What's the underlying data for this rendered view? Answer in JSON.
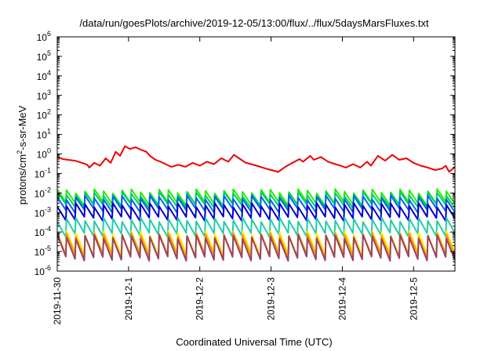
{
  "chart_data": {
    "type": "line",
    "title": "/data/run/goesPlots/archive/2019-12-05/13:00/flux/../flux/5daysMarsFluxes.txt",
    "xlabel": "Coordinated Universal Time (UTC)",
    "ylabel_base": "protons/cm",
    "ylabel_sup": "2",
    "ylabel_rest": "-s-sr-MeV",
    "y_scale": "log",
    "ylim": [
      1e-06,
      1000000.0
    ],
    "xlim": [
      0,
      5.58
    ],
    "grid": false,
    "legend": "none",
    "y_ticks": [
      {
        "base": "10",
        "exp": "-6"
      },
      {
        "base": "10",
        "exp": "-5"
      },
      {
        "base": "10",
        "exp": "-4"
      },
      {
        "base": "10",
        "exp": "-3"
      },
      {
        "base": "10",
        "exp": "-2"
      },
      {
        "base": "10",
        "exp": "-1"
      },
      {
        "base": "10",
        "exp": "0"
      },
      {
        "base": "10",
        "exp": "1"
      },
      {
        "base": "10",
        "exp": "2"
      },
      {
        "base": "10",
        "exp": "3"
      },
      {
        "base": "10",
        "exp": "4"
      },
      {
        "base": "10",
        "exp": "5"
      },
      {
        "base": "10",
        "exp": "6"
      }
    ],
    "x_ticks": [
      "2019-11-30",
      "2019-12-1",
      "2019-12-2",
      "2019-12-3",
      "2019-12-4",
      "2019-12-5"
    ],
    "series": [
      {
        "color": "#ee0000",
        "x": [
          0,
          0.08,
          0.15,
          0.25,
          0.35,
          0.42,
          0.45,
          0.52,
          0.6,
          0.68,
          0.75,
          0.82,
          0.88,
          0.95,
          1.02,
          1.1,
          1.18,
          1.25,
          1.3,
          1.38,
          1.45,
          1.52,
          1.6,
          1.7,
          1.8,
          1.9,
          2.0,
          2.1,
          2.2,
          2.3,
          2.4,
          2.48,
          2.55,
          2.6,
          2.65,
          2.72,
          2.8,
          2.88,
          3.0,
          3.1,
          3.2,
          3.3,
          3.4,
          3.45,
          3.55,
          3.6,
          3.7,
          3.8,
          3.9,
          3.98,
          4.05,
          4.15,
          4.25,
          4.35,
          4.4,
          4.5,
          4.6,
          4.7,
          4.8,
          4.9,
          5.0,
          5.1,
          5.2,
          5.3,
          5.4,
          5.45,
          5.5,
          5.58
        ],
        "y": [
          0.7,
          0.55,
          0.5,
          0.45,
          0.35,
          0.28,
          0.2,
          0.35,
          0.25,
          0.6,
          0.35,
          1.3,
          0.8,
          2.5,
          1.8,
          2.2,
          1.6,
          1.3,
          0.8,
          0.5,
          0.4,
          0.3,
          0.22,
          0.28,
          0.22,
          0.35,
          0.25,
          0.4,
          0.3,
          0.6,
          0.4,
          0.9,
          0.6,
          0.45,
          0.35,
          0.3,
          0.25,
          0.2,
          0.15,
          0.12,
          0.22,
          0.35,
          0.55,
          0.4,
          0.8,
          0.5,
          0.7,
          0.4,
          0.3,
          0.25,
          0.2,
          0.3,
          0.2,
          0.4,
          0.25,
          0.8,
          0.45,
          0.9,
          0.5,
          0.6,
          0.35,
          0.25,
          0.2,
          0.15,
          0.18,
          0.25,
          0.12,
          0.22
        ]
      },
      {
        "color": "#22ee00",
        "base": 0.006,
        "amp": 4.5
      },
      {
        "color": "#00cc66",
        "base": 0.0045,
        "amp": 4.0
      },
      {
        "color": "#0066ee",
        "base": 0.0028,
        "amp": 4.5
      },
      {
        "color": "#0000cc",
        "base": 0.0011,
        "amp": 5.0
      },
      {
        "color": "#22ccaa",
        "base": 0.00018,
        "amp": 6.0
      },
      {
        "color": "#ffee00",
        "base": 2.6e-05,
        "amp": 12.0
      },
      {
        "color": "#ff9900",
        "base": 2.1e-05,
        "amp": 12.0
      },
      {
        "color": "#994466",
        "base": 1.6e-05,
        "amp": 13.0
      }
    ]
  }
}
